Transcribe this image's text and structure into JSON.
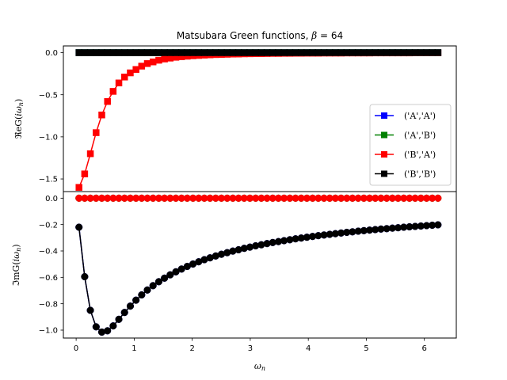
{
  "chart_data": {
    "type": "line",
    "title": "Matsubara Green functions, β = 64",
    "xlabel": "ω_n",
    "x_ticks": [
      "0",
      "1",
      "2",
      "3",
      "4",
      "5",
      "6"
    ],
    "x_tick_values": [
      0,
      1,
      2,
      3,
      4,
      5,
      6
    ],
    "xlim": [
      -0.22,
      6.55
    ],
    "x": [
      0.049,
      0.147,
      0.245,
      0.344,
      0.442,
      0.54,
      0.638,
      0.736,
      0.834,
      0.933,
      1.031,
      1.129,
      1.227,
      1.325,
      1.424,
      1.522,
      1.62,
      1.718,
      1.816,
      1.914,
      2.013,
      2.111,
      2.209,
      2.307,
      2.405,
      2.503,
      2.602,
      2.7,
      2.798,
      2.896,
      2.994,
      3.093,
      3.191,
      3.289,
      3.387,
      3.485,
      3.583,
      3.682,
      3.78,
      3.878,
      3.976,
      4.074,
      4.172,
      4.271,
      4.369,
      4.467,
      4.565,
      4.663,
      4.761,
      4.86,
      4.958,
      5.056,
      5.154,
      5.252,
      5.351,
      5.449,
      5.547,
      5.645,
      5.743,
      5.841,
      5.94,
      6.038,
      6.136,
      6.234
    ],
    "panels": [
      {
        "ylabel": "ℜeG(iω_n)",
        "y_ticks": [
          "0.0",
          "−0.5",
          "−1.0",
          "−1.5"
        ],
        "y_tick_values": [
          0.0,
          -0.5,
          -1.0,
          -1.5
        ],
        "ylim": [
          -1.65,
          0.08
        ],
        "marker": "square",
        "series": [
          {
            "name": "('A','A')",
            "color": "#0000ff",
            "values": [
              0,
              0,
              0,
              0,
              0,
              0,
              0,
              0,
              0,
              0,
              0,
              0,
              0,
              0,
              0,
              0,
              0,
              0,
              0,
              0,
              0,
              0,
              0,
              0,
              0,
              0,
              0,
              0,
              0,
              0,
              0,
              0,
              0,
              0,
              0,
              0,
              0,
              0,
              0,
              0,
              0,
              0,
              0,
              0,
              0,
              0,
              0,
              0,
              0,
              0,
              0,
              0,
              0,
              0,
              0,
              0,
              0,
              0,
              0,
              0,
              0,
              0,
              0,
              0
            ]
          },
          {
            "name": "('A','B')",
            "color": "#008000",
            "values": [
              0,
              0,
              0,
              0,
              0,
              0,
              0,
              0,
              0,
              0,
              0,
              0,
              0,
              0,
              0,
              0,
              0,
              0,
              0,
              0,
              0,
              0,
              0,
              0,
              0,
              0,
              0,
              0,
              0,
              0,
              0,
              0,
              0,
              0,
              0,
              0,
              0,
              0,
              0,
              0,
              0,
              0,
              0,
              0,
              0,
              0,
              0,
              0,
              0,
              0,
              0,
              0,
              0,
              0,
              0,
              0,
              0,
              0,
              0,
              0,
              0,
              0,
              0,
              0
            ]
          },
          {
            "name": "('B','A')",
            "color": "#ff0000",
            "values": [
              -1.6,
              -1.44,
              -1.2,
              -0.95,
              -0.74,
              -0.58,
              -0.46,
              -0.36,
              -0.29,
              -0.24,
              -0.2,
              -0.16,
              -0.13,
              -0.11,
              -0.09,
              -0.075,
              -0.065,
              -0.055,
              -0.048,
              -0.042,
              -0.037,
              -0.033,
              -0.029,
              -0.026,
              -0.023,
              -0.021,
              -0.019,
              -0.017,
              -0.016,
              -0.014,
              -0.013,
              -0.012,
              -0.011,
              -0.01,
              -0.009,
              -0.009,
              -0.008,
              -0.008,
              -0.007,
              -0.007,
              -0.006,
              -0.006,
              -0.006,
              -0.005,
              -0.005,
              -0.005,
              -0.005,
              -0.004,
              -0.004,
              -0.004,
              -0.004,
              -0.004,
              -0.003,
              -0.003,
              -0.003,
              -0.003,
              -0.003,
              -0.003,
              -0.003,
              -0.002,
              -0.002,
              -0.002,
              -0.002,
              -0.002
            ]
          },
          {
            "name": "('B','B')",
            "color": "#000000",
            "values": [
              0,
              0,
              0,
              0,
              0,
              0,
              0,
              0,
              0,
              0,
              0,
              0,
              0,
              0,
              0,
              0,
              0,
              0,
              0,
              0,
              0,
              0,
              0,
              0,
              0,
              0,
              0,
              0,
              0,
              0,
              0,
              0,
              0,
              0,
              0,
              0,
              0,
              0,
              0,
              0,
              0,
              0,
              0,
              0,
              0,
              0,
              0,
              0,
              0,
              0,
              0,
              0,
              0,
              0,
              0,
              0,
              0,
              0,
              0,
              0,
              0,
              0,
              0,
              0
            ]
          }
        ]
      },
      {
        "ylabel": "ℑmG(iω_n)",
        "y_ticks": [
          "0.0",
          "−0.2",
          "−0.4",
          "−0.6",
          "−0.8",
          "−1.0"
        ],
        "y_tick_values": [
          0.0,
          -0.2,
          -0.4,
          -0.6,
          -0.8,
          -1.0
        ],
        "ylim": [
          -1.06,
          0.05
        ],
        "marker": "circle",
        "series": [
          {
            "name": "('A','A')",
            "color": "#0000ff",
            "values": [
              -0.22,
              -0.595,
              -0.85,
              -0.975,
              -1.015,
              -1.005,
              -0.968,
              -0.918,
              -0.866,
              -0.818,
              -0.773,
              -0.733,
              -0.696,
              -0.663,
              -0.633,
              -0.606,
              -0.581,
              -0.558,
              -0.537,
              -0.517,
              -0.499,
              -0.482,
              -0.466,
              -0.452,
              -0.438,
              -0.425,
              -0.413,
              -0.401,
              -0.391,
              -0.38,
              -0.371,
              -0.361,
              -0.353,
              -0.344,
              -0.336,
              -0.329,
              -0.322,
              -0.315,
              -0.308,
              -0.302,
              -0.296,
              -0.29,
              -0.284,
              -0.279,
              -0.274,
              -0.269,
              -0.264,
              -0.259,
              -0.255,
              -0.25,
              -0.246,
              -0.242,
              -0.238,
              -0.234,
              -0.231,
              -0.227,
              -0.224,
              -0.22,
              -0.217,
              -0.214,
              -0.211,
              -0.208,
              -0.205,
              -0.202
            ]
          },
          {
            "name": "('A','B')",
            "color": "#008000",
            "values": [
              0,
              0,
              0,
              0,
              0,
              0,
              0,
              0,
              0,
              0,
              0,
              0,
              0,
              0,
              0,
              0,
              0,
              0,
              0,
              0,
              0,
              0,
              0,
              0,
              0,
              0,
              0,
              0,
              0,
              0,
              0,
              0,
              0,
              0,
              0,
              0,
              0,
              0,
              0,
              0,
              0,
              0,
              0,
              0,
              0,
              0,
              0,
              0,
              0,
              0,
              0,
              0,
              0,
              0,
              0,
              0,
              0,
              0,
              0,
              0,
              0,
              0,
              0,
              0
            ]
          },
          {
            "name": "('B','A')",
            "color": "#ff0000",
            "values": [
              0,
              0,
              0,
              0,
              0,
              0,
              0,
              0,
              0,
              0,
              0,
              0,
              0,
              0,
              0,
              0,
              0,
              0,
              0,
              0,
              0,
              0,
              0,
              0,
              0,
              0,
              0,
              0,
              0,
              0,
              0,
              0,
              0,
              0,
              0,
              0,
              0,
              0,
              0,
              0,
              0,
              0,
              0,
              0,
              0,
              0,
              0,
              0,
              0,
              0,
              0,
              0,
              0,
              0,
              0,
              0,
              0,
              0,
              0,
              0,
              0,
              0,
              0,
              0
            ]
          },
          {
            "name": "('B','B')",
            "color": "#000000",
            "values": [
              -0.22,
              -0.595,
              -0.85,
              -0.975,
              -1.015,
              -1.005,
              -0.968,
              -0.918,
              -0.866,
              -0.818,
              -0.773,
              -0.733,
              -0.696,
              -0.663,
              -0.633,
              -0.606,
              -0.581,
              -0.558,
              -0.537,
              -0.517,
              -0.499,
              -0.482,
              -0.466,
              -0.452,
              -0.438,
              -0.425,
              -0.413,
              -0.401,
              -0.391,
              -0.38,
              -0.371,
              -0.361,
              -0.353,
              -0.344,
              -0.336,
              -0.329,
              -0.322,
              -0.315,
              -0.308,
              -0.302,
              -0.296,
              -0.29,
              -0.284,
              -0.279,
              -0.274,
              -0.269,
              -0.264,
              -0.259,
              -0.255,
              -0.25,
              -0.246,
              -0.242,
              -0.238,
              -0.234,
              -0.231,
              -0.227,
              -0.224,
              -0.22,
              -0.217,
              -0.214,
              -0.211,
              -0.208,
              -0.205,
              -0.202
            ]
          }
        ]
      }
    ],
    "legend": {
      "placement": "lower-right of top panel",
      "entries": [
        "('A','A')",
        "('A','B')",
        "('B','A')",
        "('B','B')"
      ],
      "colors": [
        "#0000ff",
        "#008000",
        "#ff0000",
        "#000000"
      ]
    },
    "grid": false
  }
}
